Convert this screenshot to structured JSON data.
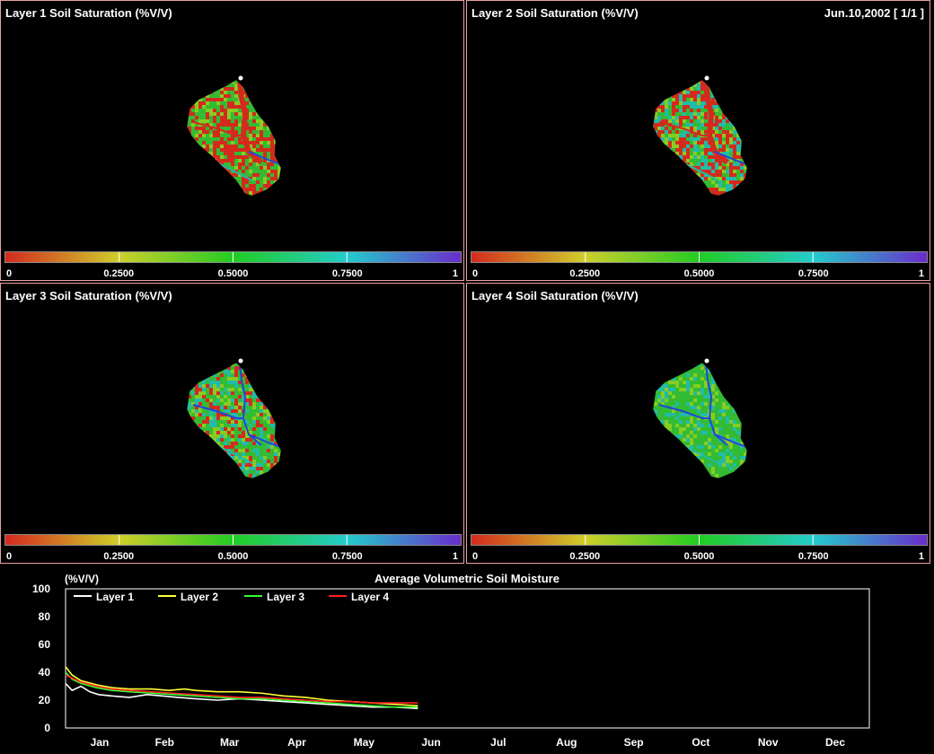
{
  "colors": {
    "border": "#e8a0a0",
    "scale": [
      "#d42a1e",
      "#cfcf2a",
      "#22cc22",
      "#22cccc",
      "#6a2ccc"
    ],
    "map_red": "#d42a1e",
    "map_green": "#33bb33",
    "map_lime": "#88cc22",
    "map_cyan": "#22bbaa",
    "map_blue": "#2244dd"
  },
  "panels": [
    {
      "title": "Layer 1 Soil Saturation (%V/V)",
      "date": ""
    },
    {
      "title": "Layer 2 Soil Saturation (%V/V)",
      "date": "Jun.10,2002 [ 1/1 ]"
    },
    {
      "title": "Layer 3 Soil Saturation (%V/V)",
      "date": ""
    },
    {
      "title": "Layer 4 Soil Saturation (%V/V)",
      "date": ""
    }
  ],
  "colorbar_ticks": [
    "0",
    "0.2500",
    "0.5000",
    "0.7500",
    "1"
  ],
  "chart_data": {
    "type": "line",
    "title": "Average Volumetric Soil Moisture",
    "ylabel": "(%V/V)",
    "ylim": [
      0,
      100
    ],
    "yticks": [
      "0",
      "20",
      "40",
      "60",
      "80",
      "100"
    ],
    "months": [
      "Jan",
      "Feb",
      "Mar",
      "Apr",
      "May",
      "Jun",
      "Jul",
      "Aug",
      "Sep",
      "Oct",
      "Nov",
      "Dec"
    ],
    "legend_placement": "top-left",
    "x_unit": "day of year",
    "series": [
      {
        "name": "Layer 1",
        "color": "#ffffff",
        "x": [
          1,
          4,
          8,
          12,
          16,
          22,
          30,
          38,
          45,
          52,
          60,
          70,
          80,
          90,
          100,
          110,
          120,
          130,
          140,
          150,
          161
        ],
        "y": [
          32,
          27,
          30,
          26,
          24,
          23,
          22,
          24,
          23,
          22,
          21,
          20,
          21,
          20,
          19,
          18,
          17,
          16,
          15,
          15,
          14
        ]
      },
      {
        "name": "Layer 2",
        "color": "#ffff33",
        "x": [
          1,
          4,
          8,
          15,
          22,
          30,
          40,
          48,
          55,
          60,
          70,
          80,
          90,
          100,
          110,
          120,
          130,
          140,
          150,
          161
        ],
        "y": [
          44,
          38,
          34,
          31,
          29,
          28,
          28,
          27,
          28,
          27,
          26,
          26,
          25,
          23,
          22,
          20,
          19,
          18,
          17,
          16
        ]
      },
      {
        "name": "Layer 3",
        "color": "#33ff33",
        "x": [
          1,
          4,
          8,
          15,
          22,
          30,
          40,
          50,
          60,
          70,
          80,
          90,
          100,
          110,
          120,
          130,
          140,
          150,
          161
        ],
        "y": [
          40,
          35,
          32,
          29,
          27,
          26,
          25,
          24,
          23,
          22,
          21,
          21,
          20,
          19,
          18,
          17,
          16,
          15,
          15
        ]
      },
      {
        "name": "Layer 4",
        "color": "#ff2222",
        "x": [
          1,
          8,
          15,
          22,
          30,
          40,
          50,
          60,
          70,
          80,
          90,
          100,
          110,
          120,
          130,
          140,
          150,
          161
        ],
        "y": [
          38,
          33,
          30,
          28,
          27,
          26,
          25,
          24,
          23,
          22,
          22,
          21,
          20,
          19,
          19,
          18,
          18,
          18
        ]
      }
    ]
  }
}
